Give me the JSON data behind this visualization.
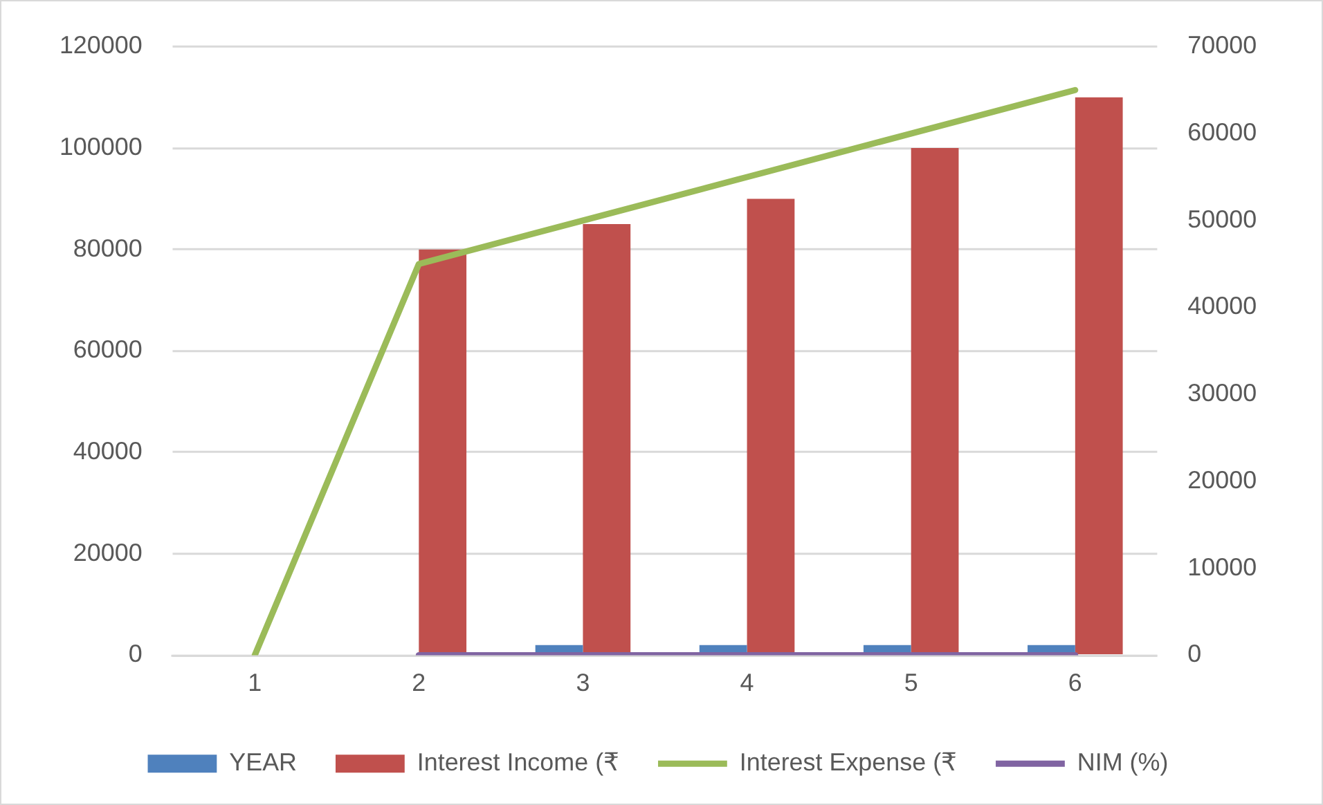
{
  "chart_data": {
    "type": "bar",
    "categories": [
      "1",
      "2",
      "3",
      "4",
      "5",
      "6"
    ],
    "series": [
      {
        "name": "YEAR",
        "color": "#4f81bd",
        "values": [
          null,
          null,
          2000,
          2000,
          2000,
          2000
        ]
      },
      {
        "name": "Interest Income (₹",
        "color": "#c0504d",
        "values": [
          null,
          80000,
          85000,
          90000,
          100000,
          110000
        ]
      },
      {
        "name": "Interest Expense (₹",
        "type": "line",
        "axis": "y2",
        "color": "#9bbb59",
        "values": [
          0,
          45000,
          50000,
          55000,
          60000,
          65000
        ]
      },
      {
        "name": "NIM (%)",
        "type": "line",
        "axis": "y2",
        "color": "#8064a2",
        "values": [
          null,
          0,
          0,
          0,
          0,
          0
        ]
      }
    ],
    "ylim": [
      0,
      120000
    ],
    "yticks": [
      0,
      20000,
      40000,
      60000,
      80000,
      100000,
      120000
    ],
    "y2lim": [
      0,
      70000
    ],
    "y2ticks": [
      0,
      10000,
      20000,
      30000,
      40000,
      50000,
      60000,
      70000
    ],
    "grid": "y",
    "legend": "bottom",
    "marker": "none"
  }
}
